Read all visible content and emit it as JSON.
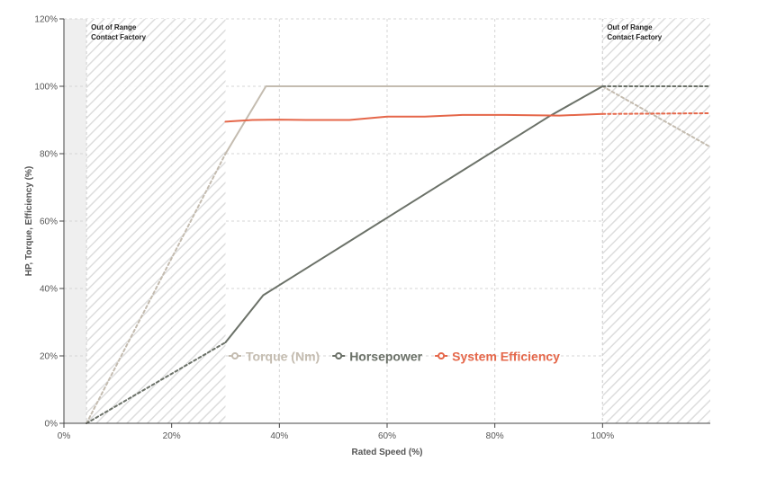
{
  "chart_data": {
    "type": "line",
    "xlabel": "Rated Speed (%)",
    "ylabel": "HP, Torque, Efficiency (%)",
    "xlim": [
      0,
      120
    ],
    "ylim": [
      0,
      120
    ],
    "x_ticks": [
      {
        "value": 0,
        "label": "0%"
      },
      {
        "value": 20,
        "label": "20%"
      },
      {
        "value": 40,
        "label": "40%"
      },
      {
        "value": 60,
        "label": "60%"
      },
      {
        "value": 80,
        "label": "80%"
      },
      {
        "value": 100,
        "label": "100%"
      }
    ],
    "y_ticks": [
      {
        "value": 0,
        "label": "0%"
      },
      {
        "value": 20,
        "label": "20%"
      },
      {
        "value": 40,
        "label": "40%"
      },
      {
        "value": 60,
        "label": "60%"
      },
      {
        "value": 80,
        "label": "80%"
      },
      {
        "value": 100,
        "label": "100%"
      },
      {
        "value": 120,
        "label": "120%"
      }
    ],
    "grid": true,
    "out_of_range_regions": [
      {
        "x_start": 4.2,
        "x_end": 30,
        "label_line1": "Out of Range",
        "label_line2": "Contact Factory"
      },
      {
        "x_start": 100,
        "x_end": 120,
        "label_line1": "Out of Range",
        "label_line2": "Contact Factory"
      }
    ],
    "series": [
      {
        "name": "Torque (Nm)",
        "color": "#c4bcb0",
        "valid_range": [
          [
            30,
            80
          ],
          [
            37.5,
            100
          ],
          [
            60,
            100
          ],
          [
            80,
            100
          ],
          [
            100,
            100
          ]
        ],
        "extrapolated": [
          [
            [
              4.2,
              0
            ],
            [
              30,
              80
            ]
          ],
          [
            [
              100,
              100
            ],
            [
              120,
              82
            ]
          ]
        ]
      },
      {
        "name": "Horsepower",
        "color": "#6b7168",
        "valid_range": [
          [
            30,
            24
          ],
          [
            33,
            30
          ],
          [
            37,
            38
          ],
          [
            40,
            41
          ],
          [
            50,
            51
          ],
          [
            60,
            61
          ],
          [
            70,
            71
          ],
          [
            80,
            81
          ],
          [
            90,
            91
          ],
          [
            100,
            100
          ]
        ],
        "extrapolated": [
          [
            [
              4.2,
              0
            ],
            [
              30,
              24
            ]
          ],
          [
            [
              100,
              100
            ],
            [
              120,
              100
            ]
          ]
        ]
      },
      {
        "name": "System Efficiency",
        "color": "#e5674a",
        "valid_range": [
          [
            30,
            89.5
          ],
          [
            35,
            90
          ],
          [
            40,
            90.1
          ],
          [
            45,
            90
          ],
          [
            53,
            90
          ],
          [
            60,
            91
          ],
          [
            67,
            91
          ],
          [
            74,
            91.5
          ],
          [
            82,
            91.5
          ],
          [
            92,
            91.3
          ],
          [
            100,
            91.8
          ]
        ],
        "extrapolated": [
          [
            [
              100,
              91.8
            ],
            [
              120,
              92
            ]
          ]
        ]
      }
    ],
    "legend_position": "inside, lower-middle"
  }
}
